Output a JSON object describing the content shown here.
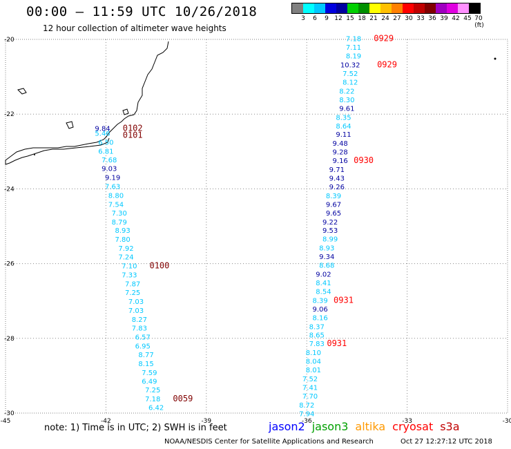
{
  "header": {
    "title": "00:00 – 11:59 UTC 10/26/2018",
    "subtitle": "12 hour collection of altimeter wave heights"
  },
  "legend": {
    "colors": [
      "#808080",
      "#00ffff",
      "#00c8ff",
      "#0000e0",
      "#0000a0",
      "#00d000",
      "#009000",
      "#ffff00",
      "#ffc000",
      "#ff8000",
      "#ff0000",
      "#c00000",
      "#800000",
      "#a000c0",
      "#e000e0",
      "#ff90ff",
      "#000000"
    ],
    "labels": [
      "3",
      "6",
      "9",
      "12",
      "15",
      "18",
      "21",
      "24",
      "27",
      "30",
      "33",
      "36",
      "39",
      "42",
      "45",
      "70 (ft)"
    ]
  },
  "map": {
    "x_ticks": [
      "-45",
      "-42",
      "-39",
      "-36",
      "-33",
      "-30"
    ],
    "y_ticks": [
      "-20",
      "-22",
      "-24",
      "-26",
      "-28",
      "-30"
    ],
    "lon_range": [
      -45,
      -30
    ],
    "lat_range": [
      -30,
      -20
    ]
  },
  "tracks": [
    {
      "name": "west",
      "points": [
        {
          "lon": -42.1,
          "lat": -22.45,
          "v": "9.84",
          "c": "#0000a0"
        },
        {
          "lon": -42.1,
          "lat": -22.58,
          "v": "5.46",
          "c": "#00c8ff"
        },
        {
          "lon": -42.0,
          "lat": -22.82,
          "v": "6.50",
          "c": "#00c8ff"
        },
        {
          "lon": -42.0,
          "lat": -23.06,
          "v": "6.81",
          "c": "#00c8ff"
        },
        {
          "lon": -41.9,
          "lat": -23.29,
          "v": "7.68",
          "c": "#00c8ff"
        },
        {
          "lon": -41.9,
          "lat": -23.52,
          "v": "9.03",
          "c": "#0000a0"
        },
        {
          "lon": -41.8,
          "lat": -23.76,
          "v": "9.19",
          "c": "#0000a0"
        },
        {
          "lon": -41.8,
          "lat": -24.0,
          "v": "7.63",
          "c": "#00c8ff"
        },
        {
          "lon": -41.7,
          "lat": -24.24,
          "v": "8.80",
          "c": "#00c8ff"
        },
        {
          "lon": -41.7,
          "lat": -24.48,
          "v": "7.54",
          "c": "#00c8ff"
        },
        {
          "lon": -41.6,
          "lat": -24.71,
          "v": "7.30",
          "c": "#00c8ff"
        },
        {
          "lon": -41.6,
          "lat": -24.95,
          "v": "8.79",
          "c": "#00c8ff"
        },
        {
          "lon": -41.5,
          "lat": -25.18,
          "v": "8.93",
          "c": "#00c8ff"
        },
        {
          "lon": -41.5,
          "lat": -25.42,
          "v": "7.80",
          "c": "#00c8ff"
        },
        {
          "lon": -41.4,
          "lat": -25.66,
          "v": "7.92",
          "c": "#00c8ff"
        },
        {
          "lon": -41.4,
          "lat": -25.89,
          "v": "7.24",
          "c": "#00c8ff"
        },
        {
          "lon": -41.3,
          "lat": -26.13,
          "v": "7.10",
          "c": "#00c8ff"
        },
        {
          "lon": -41.3,
          "lat": -26.37,
          "v": "7.33",
          "c": "#00c8ff"
        },
        {
          "lon": -41.2,
          "lat": -26.61,
          "v": "7.87",
          "c": "#00c8ff"
        },
        {
          "lon": -41.2,
          "lat": -26.84,
          "v": "7.25",
          "c": "#00c8ff"
        },
        {
          "lon": -41.1,
          "lat": -27.08,
          "v": "7.03",
          "c": "#00c8ff"
        },
        {
          "lon": -41.1,
          "lat": -27.32,
          "v": "7.03",
          "c": "#00c8ff"
        },
        {
          "lon": -41.0,
          "lat": -27.56,
          "v": "8.27",
          "c": "#00c8ff"
        },
        {
          "lon": -41.0,
          "lat": -27.79,
          "v": "7.83",
          "c": "#00c8ff"
        },
        {
          "lon": -40.9,
          "lat": -28.03,
          "v": "6.57",
          "c": "#00c8ff"
        },
        {
          "lon": -40.9,
          "lat": -28.27,
          "v": "6.95",
          "c": "#00c8ff"
        },
        {
          "lon": -40.8,
          "lat": -28.5,
          "v": "8.77",
          "c": "#00c8ff"
        },
        {
          "lon": -40.8,
          "lat": -28.74,
          "v": "8.15",
          "c": "#00c8ff"
        },
        {
          "lon": -40.7,
          "lat": -28.98,
          "v": "7.59",
          "c": "#00c8ff"
        },
        {
          "lon": -40.7,
          "lat": -29.21,
          "v": "6.49",
          "c": "#00c8ff"
        },
        {
          "lon": -40.6,
          "lat": -29.45,
          "v": "7.25",
          "c": "#00c8ff"
        },
        {
          "lon": -40.6,
          "lat": -29.69,
          "v": "7.18",
          "c": "#00c8ff"
        },
        {
          "lon": -40.5,
          "lat": -29.92,
          "v": "6.42",
          "c": "#00c8ff"
        }
      ]
    },
    {
      "name": "east",
      "points": [
        {
          "lon": -34.6,
          "lat": -20.05,
          "v": "7.18",
          "c": "#00c8ff"
        },
        {
          "lon": -34.6,
          "lat": -20.28,
          "v": "7.11",
          "c": "#00c8ff"
        },
        {
          "lon": -34.6,
          "lat": -20.51,
          "v": "8.19",
          "c": "#00c8ff"
        },
        {
          "lon": -34.7,
          "lat": -20.75,
          "v": "10.32",
          "c": "#0000a0"
        },
        {
          "lon": -34.7,
          "lat": -20.98,
          "v": "7.52",
          "c": "#00c8ff"
        },
        {
          "lon": -34.7,
          "lat": -21.21,
          "v": "8.12",
          "c": "#00c8ff"
        },
        {
          "lon": -34.8,
          "lat": -21.45,
          "v": "8.22",
          "c": "#00c8ff"
        },
        {
          "lon": -34.8,
          "lat": -21.68,
          "v": "8.30",
          "c": "#00c8ff"
        },
        {
          "lon": -34.8,
          "lat": -21.91,
          "v": "9.61",
          "c": "#0000a0"
        },
        {
          "lon": -34.9,
          "lat": -22.15,
          "v": "8.35",
          "c": "#00c8ff"
        },
        {
          "lon": -34.9,
          "lat": -22.38,
          "v": "8.64",
          "c": "#00c8ff"
        },
        {
          "lon": -34.9,
          "lat": -22.61,
          "v": "9.11",
          "c": "#0000a0"
        },
        {
          "lon": -35.0,
          "lat": -22.85,
          "v": "9.48",
          "c": "#0000a0"
        },
        {
          "lon": -35.0,
          "lat": -23.08,
          "v": "9.28",
          "c": "#0000a0"
        },
        {
          "lon": -35.0,
          "lat": -23.31,
          "v": "9.16",
          "c": "#0000a0"
        },
        {
          "lon": -35.1,
          "lat": -23.55,
          "v": "9.71",
          "c": "#0000a0"
        },
        {
          "lon": -35.1,
          "lat": -23.78,
          "v": "9.43",
          "c": "#0000a0"
        },
        {
          "lon": -35.1,
          "lat": -24.01,
          "v": "9.26",
          "c": "#0000a0"
        },
        {
          "lon": -35.2,
          "lat": -24.25,
          "v": "8.39",
          "c": "#00c8ff"
        },
        {
          "lon": -35.2,
          "lat": -24.48,
          "v": "9.67",
          "c": "#0000a0"
        },
        {
          "lon": -35.2,
          "lat": -24.71,
          "v": "9.65",
          "c": "#0000a0"
        },
        {
          "lon": -35.3,
          "lat": -24.95,
          "v": "9.22",
          "c": "#0000a0"
        },
        {
          "lon": -35.3,
          "lat": -25.18,
          "v": "9.53",
          "c": "#0000a0"
        },
        {
          "lon": -35.3,
          "lat": -25.41,
          "v": "8.99",
          "c": "#00c8ff"
        },
        {
          "lon": -35.4,
          "lat": -25.65,
          "v": "8.93",
          "c": "#00c8ff"
        },
        {
          "lon": -35.4,
          "lat": -25.88,
          "v": "9.34",
          "c": "#0000a0"
        },
        {
          "lon": -35.4,
          "lat": -26.11,
          "v": "8.68",
          "c": "#00c8ff"
        },
        {
          "lon": -35.5,
          "lat": -26.35,
          "v": "9.02",
          "c": "#0000a0"
        },
        {
          "lon": -35.5,
          "lat": -26.58,
          "v": "8.41",
          "c": "#00c8ff"
        },
        {
          "lon": -35.5,
          "lat": -26.81,
          "v": "8.54",
          "c": "#00c8ff"
        },
        {
          "lon": -35.6,
          "lat": -27.05,
          "v": "8.39",
          "c": "#00c8ff"
        },
        {
          "lon": -35.6,
          "lat": -27.28,
          "v": "9.06",
          "c": "#0000a0"
        },
        {
          "lon": -35.6,
          "lat": -27.51,
          "v": "8.16",
          "c": "#00c8ff"
        },
        {
          "lon": -35.7,
          "lat": -27.75,
          "v": "8.37",
          "c": "#00c8ff"
        },
        {
          "lon": -35.7,
          "lat": -27.98,
          "v": "8.65",
          "c": "#00c8ff"
        },
        {
          "lon": -35.7,
          "lat": -28.21,
          "v": "7.83",
          "c": "#00c8ff"
        },
        {
          "lon": -35.8,
          "lat": -28.45,
          "v": "8.10",
          "c": "#00c8ff"
        },
        {
          "lon": -35.8,
          "lat": -28.68,
          "v": "8.04",
          "c": "#00c8ff"
        },
        {
          "lon": -35.8,
          "lat": -28.91,
          "v": "8.01",
          "c": "#00c8ff"
        },
        {
          "lon": -35.9,
          "lat": -29.15,
          "v": "7.52",
          "c": "#00c8ff"
        },
        {
          "lon": -35.9,
          "lat": -29.38,
          "v": "7.41",
          "c": "#00c8ff"
        },
        {
          "lon": -35.9,
          "lat": -29.61,
          "v": "7.70",
          "c": "#00c8ff"
        },
        {
          "lon": -36.0,
          "lat": -29.85,
          "v": "8.72",
          "c": "#00c8ff"
        },
        {
          "lon": -36.0,
          "lat": -30.08,
          "v": "7.94",
          "c": "#00c8ff"
        }
      ]
    }
  ],
  "time_labels": [
    {
      "lon": -41.2,
      "lat": -22.45,
      "t": "0102",
      "c": "#800000"
    },
    {
      "lon": -41.2,
      "lat": -22.63,
      "t": "0101",
      "c": "#800000"
    },
    {
      "lon": -40.4,
      "lat": -26.13,
      "t": "0100",
      "c": "#800000"
    },
    {
      "lon": -39.7,
      "lat": -29.69,
      "t": "0059",
      "c": "#800000"
    },
    {
      "lon": -33.7,
      "lat": -20.05,
      "t": "0929",
      "c": "#ff0000"
    },
    {
      "lon": -33.6,
      "lat": -20.75,
      "t": "0929",
      "c": "#ff0000"
    },
    {
      "lon": -34.3,
      "lat": -23.31,
      "t": "0930",
      "c": "#ff0000"
    },
    {
      "lon": -34.9,
      "lat": -27.05,
      "t": "0931",
      "c": "#ff0000"
    },
    {
      "lon": -35.1,
      "lat": -28.21,
      "t": "0931",
      "c": "#ff0000"
    }
  ],
  "footer": {
    "note": "note: 1) Time is in UTC; 2) SWH is in feet",
    "satellites": [
      {
        "name": "jason2",
        "color": "#0000ff"
      },
      {
        "name": "jason3",
        "color": "#00a000"
      },
      {
        "name": "altika",
        "color": "#ff9900"
      },
      {
        "name": "cryosat",
        "color": "#ff0000"
      },
      {
        "name": "s3a",
        "color": "#c00000"
      }
    ],
    "credit": "NOAA/NESDIS Center for Satellite Applications and Research",
    "timestamp": "Oct 27 12:27:12 UTC 2018"
  }
}
